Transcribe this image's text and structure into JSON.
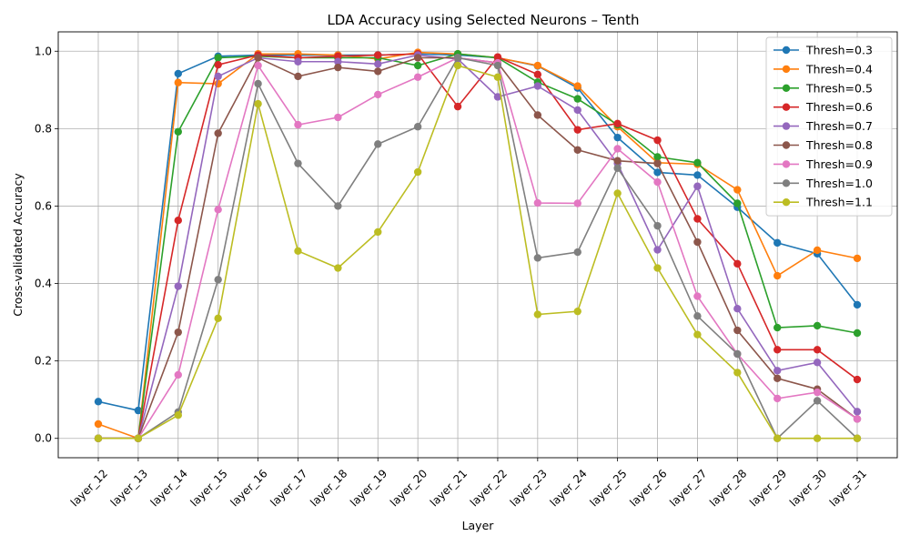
{
  "chart_data": {
    "type": "line",
    "title": "LDA Accuracy using Selected Neurons – Tenth",
    "xlabel": "Layer",
    "ylabel": "Cross-validated Accuracy",
    "ylim": [
      -0.05,
      1.05
    ],
    "yticks": [
      "0.0",
      "0.2",
      "0.4",
      "0.6",
      "0.8",
      "1.0"
    ],
    "ytick_values": [
      0,
      0.2,
      0.4,
      0.6,
      0.8,
      1.0
    ],
    "grid": true,
    "legend_position": "top-right",
    "categories": [
      "layer_12",
      "layer_13",
      "layer_14",
      "layer_15",
      "layer_16",
      "layer_17",
      "layer_18",
      "layer_19",
      "layer_20",
      "layer_21",
      "layer_22",
      "layer_23",
      "layer_24",
      "layer_25",
      "layer_26",
      "layer_27",
      "layer_28",
      "layer_29",
      "layer_30",
      "layer_31"
    ],
    "series": [
      {
        "name": "Thresh=0.3",
        "color": "#1f77b4",
        "values": [
          0.095,
          0.072,
          0.942,
          0.987,
          0.99,
          0.99,
          0.99,
          0.99,
          0.993,
          0.99,
          0.983,
          0.962,
          0.905,
          0.777,
          0.687,
          0.68,
          0.597,
          0.505,
          0.477,
          0.345
        ]
      },
      {
        "name": "Thresh=0.4",
        "color": "#ff7f0e",
        "values": [
          0.037,
          0.0,
          0.919,
          0.916,
          0.993,
          0.993,
          0.99,
          0.98,
          0.997,
          0.993,
          0.983,
          0.963,
          0.91,
          0.805,
          0.712,
          0.708,
          0.642,
          0.42,
          0.486,
          0.465
        ]
      },
      {
        "name": "Thresh=0.5",
        "color": "#2ca02c",
        "values": [
          0.0,
          0.0,
          0.792,
          0.983,
          0.987,
          0.983,
          0.983,
          0.983,
          0.963,
          0.993,
          0.983,
          0.92,
          0.877,
          0.81,
          0.727,
          0.712,
          0.607,
          0.286,
          0.291,
          0.272
        ]
      },
      {
        "name": "Thresh=0.6",
        "color": "#d62728",
        "values": [
          0.0,
          0.0,
          0.563,
          0.965,
          0.99,
          0.983,
          0.987,
          0.99,
          0.993,
          0.857,
          0.985,
          0.94,
          0.797,
          0.813,
          0.77,
          0.567,
          0.451,
          0.229,
          0.229,
          0.152
        ]
      },
      {
        "name": "Thresh=0.7",
        "color": "#9467bd",
        "values": [
          0.0,
          0.0,
          0.393,
          0.935,
          0.983,
          0.973,
          0.973,
          0.967,
          0.99,
          0.98,
          0.882,
          0.91,
          0.848,
          0.71,
          0.487,
          0.651,
          0.335,
          0.175,
          0.196,
          0.069
        ]
      },
      {
        "name": "Thresh=0.8",
        "color": "#8c564b",
        "values": [
          0.0,
          0.0,
          0.274,
          0.788,
          0.983,
          0.935,
          0.958,
          0.948,
          0.983,
          0.983,
          0.97,
          0.835,
          0.745,
          0.717,
          0.71,
          0.507,
          0.279,
          0.155,
          0.127,
          0.05
        ]
      },
      {
        "name": "Thresh=0.9",
        "color": "#e377c2",
        "values": [
          0.0,
          0.0,
          0.164,
          0.591,
          0.963,
          0.81,
          0.829,
          0.888,
          0.933,
          0.983,
          0.97,
          0.608,
          0.607,
          0.748,
          0.662,
          0.367,
          0.218,
          0.103,
          0.119,
          0.05
        ]
      },
      {
        "name": "Thresh=1.0",
        "color": "#7f7f7f",
        "values": [
          0.0,
          0.0,
          0.068,
          0.41,
          0.916,
          0.71,
          0.6,
          0.76,
          0.805,
          0.983,
          0.963,
          0.466,
          0.481,
          0.698,
          0.549,
          0.316,
          0.218,
          0.0,
          0.097,
          0.0
        ]
      },
      {
        "name": "Thresh=1.1",
        "color": "#bcbd22",
        "values": [
          0.0,
          0.0,
          0.06,
          0.31,
          0.864,
          0.484,
          0.44,
          0.533,
          0.688,
          0.963,
          0.933,
          0.32,
          0.328,
          0.633,
          0.44,
          0.268,
          0.17,
          0.0,
          0.0,
          0.0
        ]
      }
    ]
  }
}
